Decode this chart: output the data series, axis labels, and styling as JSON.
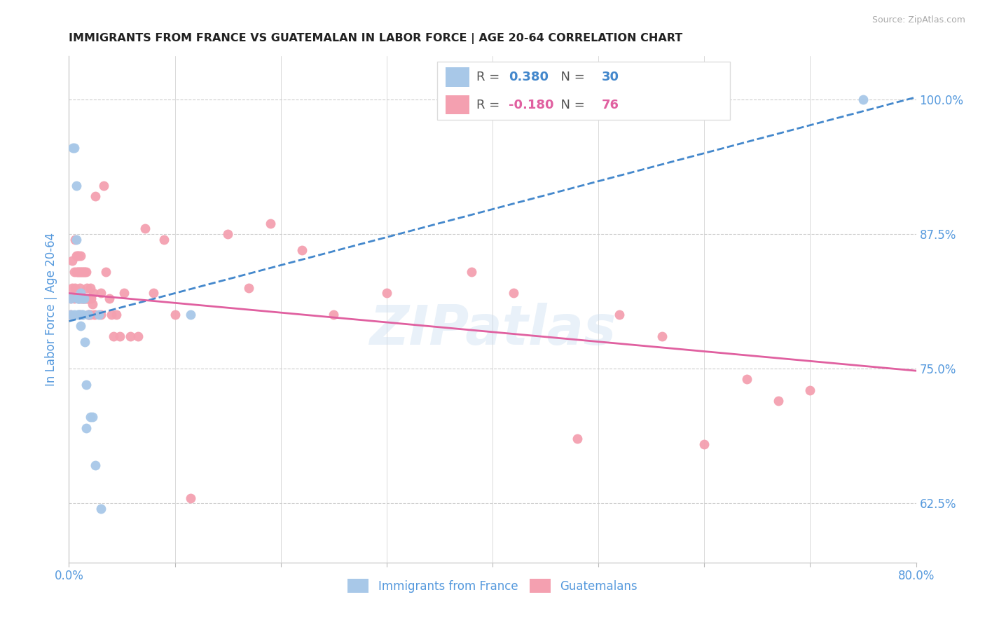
{
  "title": "IMMIGRANTS FROM FRANCE VS GUATEMALAN IN LABOR FORCE | AGE 20-64 CORRELATION CHART",
  "source": "Source: ZipAtlas.com",
  "ylabel": "In Labor Force | Age 20-64",
  "xlim": [
    0.0,
    0.8
  ],
  "ylim": [
    0.57,
    1.04
  ],
  "yticks": [
    0.625,
    0.75,
    0.875,
    1.0
  ],
  "ytick_labels": [
    "62.5%",
    "75.0%",
    "87.5%",
    "100.0%"
  ],
  "xticks": [
    0.0,
    0.1,
    0.2,
    0.3,
    0.4,
    0.5,
    0.6,
    0.7,
    0.8
  ],
  "xtick_labels": [
    "0.0%",
    "",
    "",
    "",
    "",
    "",
    "",
    "",
    "80.0%"
  ],
  "blue_color": "#a8c8e8",
  "pink_color": "#f4a0b0",
  "blue_line_color": "#4488cc",
  "pink_line_color": "#e060a0",
  "axis_label_color": "#5599dd",
  "watermark": "ZIPatlas",
  "france_trend": [
    0.794,
    1.002
  ],
  "guate_trend": [
    0.82,
    0.748
  ],
  "france_x": [
    0.002,
    0.002,
    0.004,
    0.005,
    0.005,
    0.007,
    0.007,
    0.008,
    0.008,
    0.009,
    0.009,
    0.01,
    0.01,
    0.011,
    0.011,
    0.012,
    0.013,
    0.013,
    0.014,
    0.015,
    0.016,
    0.016,
    0.018,
    0.02,
    0.022,
    0.025,
    0.028,
    0.03,
    0.115,
    0.75
  ],
  "france_y": [
    0.8,
    0.815,
    0.955,
    0.955,
    0.8,
    0.92,
    0.87,
    0.815,
    0.8,
    0.815,
    0.8,
    0.815,
    0.8,
    0.82,
    0.79,
    0.8,
    0.815,
    0.8,
    0.815,
    0.775,
    0.735,
    0.695,
    0.8,
    0.705,
    0.705,
    0.66,
    0.8,
    0.62,
    0.8,
    1.0
  ],
  "guate_x": [
    0.002,
    0.002,
    0.003,
    0.003,
    0.005,
    0.005,
    0.006,
    0.006,
    0.007,
    0.007,
    0.008,
    0.008,
    0.009,
    0.009,
    0.009,
    0.01,
    0.01,
    0.01,
    0.011,
    0.011,
    0.011,
    0.012,
    0.012,
    0.013,
    0.013,
    0.014,
    0.014,
    0.015,
    0.015,
    0.016,
    0.016,
    0.017,
    0.017,
    0.018,
    0.018,
    0.019,
    0.019,
    0.02,
    0.02,
    0.021,
    0.022,
    0.023,
    0.024,
    0.025,
    0.03,
    0.03,
    0.033,
    0.035,
    0.038,
    0.04,
    0.042,
    0.045,
    0.048,
    0.052,
    0.058,
    0.065,
    0.072,
    0.08,
    0.09,
    0.1,
    0.115,
    0.15,
    0.17,
    0.19,
    0.22,
    0.25,
    0.3,
    0.38,
    0.42,
    0.48,
    0.52,
    0.56,
    0.6,
    0.64,
    0.67,
    0.7
  ],
  "guate_y": [
    0.815,
    0.8,
    0.85,
    0.825,
    0.84,
    0.815,
    0.87,
    0.825,
    0.855,
    0.84,
    0.855,
    0.84,
    0.855,
    0.84,
    0.815,
    0.84,
    0.825,
    0.8,
    0.855,
    0.84,
    0.815,
    0.84,
    0.815,
    0.84,
    0.815,
    0.84,
    0.815,
    0.84,
    0.815,
    0.84,
    0.815,
    0.825,
    0.815,
    0.8,
    0.815,
    0.815,
    0.8,
    0.825,
    0.8,
    0.815,
    0.81,
    0.82,
    0.8,
    0.91,
    0.82,
    0.8,
    0.92,
    0.84,
    0.815,
    0.8,
    0.78,
    0.8,
    0.78,
    0.82,
    0.78,
    0.78,
    0.88,
    0.82,
    0.87,
    0.8,
    0.63,
    0.875,
    0.825,
    0.885,
    0.86,
    0.8,
    0.82,
    0.84,
    0.82,
    0.685,
    0.8,
    0.78,
    0.68,
    0.74,
    0.72,
    0.73
  ]
}
